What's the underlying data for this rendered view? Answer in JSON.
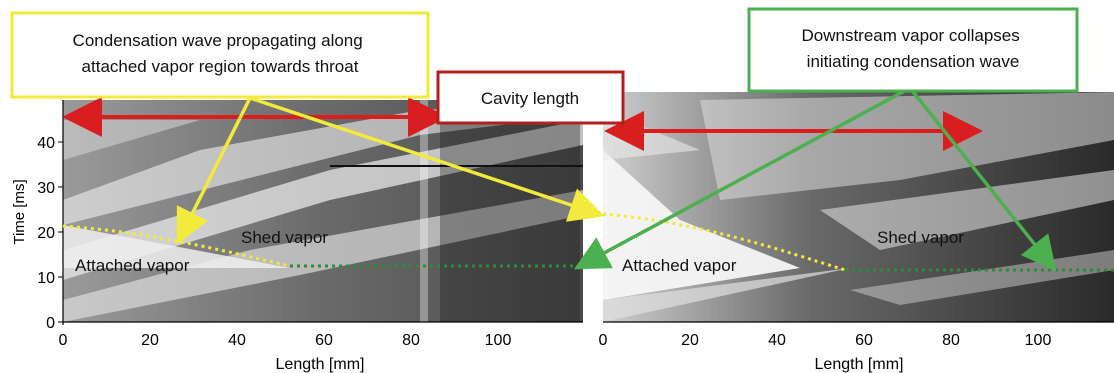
{
  "left_panel": {
    "y_axis_label": "Time [ms]",
    "x_axis_label": "Length [mm]",
    "y_ticks": [
      "0",
      "10",
      "20",
      "30",
      "40"
    ],
    "x_ticks": [
      "0",
      "20",
      "40",
      "60",
      "80",
      "100"
    ]
  },
  "right_panel": {
    "x_axis_label": "Length [mm]",
    "x_ticks": [
      "0",
      "20",
      "40",
      "60",
      "80",
      "100"
    ]
  },
  "callouts": {
    "condensation_wave": "Condensation wave propagating along\nattached vapor region towards throat",
    "cavity_length": "Cavity length",
    "downstream_collapse": "Downstream vapor collapses\ninitiating condensation wave"
  },
  "labels": {
    "left_shed": "Shed vapor",
    "left_attached": "Attached vapor",
    "right_shed": "Shed vapor",
    "right_attached": "Attached vapor"
  },
  "colors": {
    "yellow": "#f2ea3c",
    "red": "#d81e1e",
    "green": "#4caf50",
    "dark_red_border": "#b02020",
    "dotted_green": "#2e8b3a"
  }
}
